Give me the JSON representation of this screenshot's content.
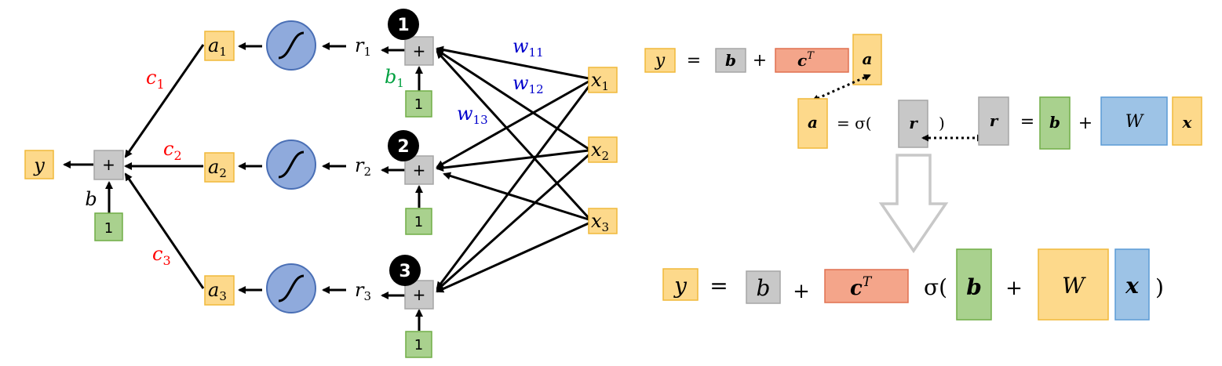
{
  "network": {
    "output": {
      "label": "y"
    },
    "output_bias": {
      "label": "b",
      "input": "1"
    },
    "output_weights": [
      "c",
      "c",
      "c"
    ],
    "output_weight_subs": [
      "1",
      "2",
      "3"
    ],
    "sum_symbol": "+",
    "neurons": [
      {
        "badge": "1",
        "r": "r",
        "r_sub": "1",
        "a": "a",
        "a_sub": "1",
        "bias_input": "1",
        "bias_label": "b",
        "bias_sub": "1"
      },
      {
        "badge": "2",
        "r": "r",
        "r_sub": "2",
        "a": "a",
        "a_sub": "2",
        "bias_input": "1"
      },
      {
        "badge": "3",
        "r": "r",
        "r_sub": "3",
        "a": "a",
        "a_sub": "3",
        "bias_input": "1"
      }
    ],
    "inputs": [
      {
        "label": "x",
        "sub": "1"
      },
      {
        "label": "x",
        "sub": "2"
      },
      {
        "label": "x",
        "sub": "3"
      }
    ],
    "weights": [
      {
        "label": "w",
        "sub": "11"
      },
      {
        "label": "w",
        "sub": "12"
      },
      {
        "label": "w",
        "sub": "13"
      }
    ]
  },
  "equations": {
    "eq1": {
      "y": "y",
      "equals": "=",
      "b": "b",
      "plus": "+",
      "c": "c",
      "T": "T",
      "a": "a"
    },
    "eq2": {
      "a": "a",
      "equals_sigma": "= σ(",
      "r": "r",
      "close": ")"
    },
    "eq3": {
      "r": "r",
      "equals": "=",
      "b": "b",
      "plus": "+",
      "W": "W",
      "x": "x"
    },
    "final": {
      "y": "y",
      "equals": "=",
      "b": "b",
      "plus1": "+",
      "c": "c",
      "T": "T",
      "sigma": "σ(",
      "b2": "b",
      "plus2": "+",
      "W": "W",
      "x": "x",
      "close": ")"
    }
  },
  "colors": {
    "orange_fill": "#fdd98b",
    "orange_stroke": "#f0b93a",
    "gray_fill": "#c8c8c8",
    "gray_stroke": "#a6a6a6",
    "green_fill": "#a9d18e",
    "green_stroke": "#70ad47",
    "salmon_fill": "#f4a58a",
    "salmon_stroke": "#e07050",
    "blue_fill": "#9dc3e6",
    "blue_stroke": "#5b9bd5",
    "sigmoid_fill": "#8faadc",
    "sigmoid_stroke": "#4a6fb5",
    "red_text": "#ff0000",
    "blue_text": "#0000cc",
    "green_text": "#00a040"
  }
}
